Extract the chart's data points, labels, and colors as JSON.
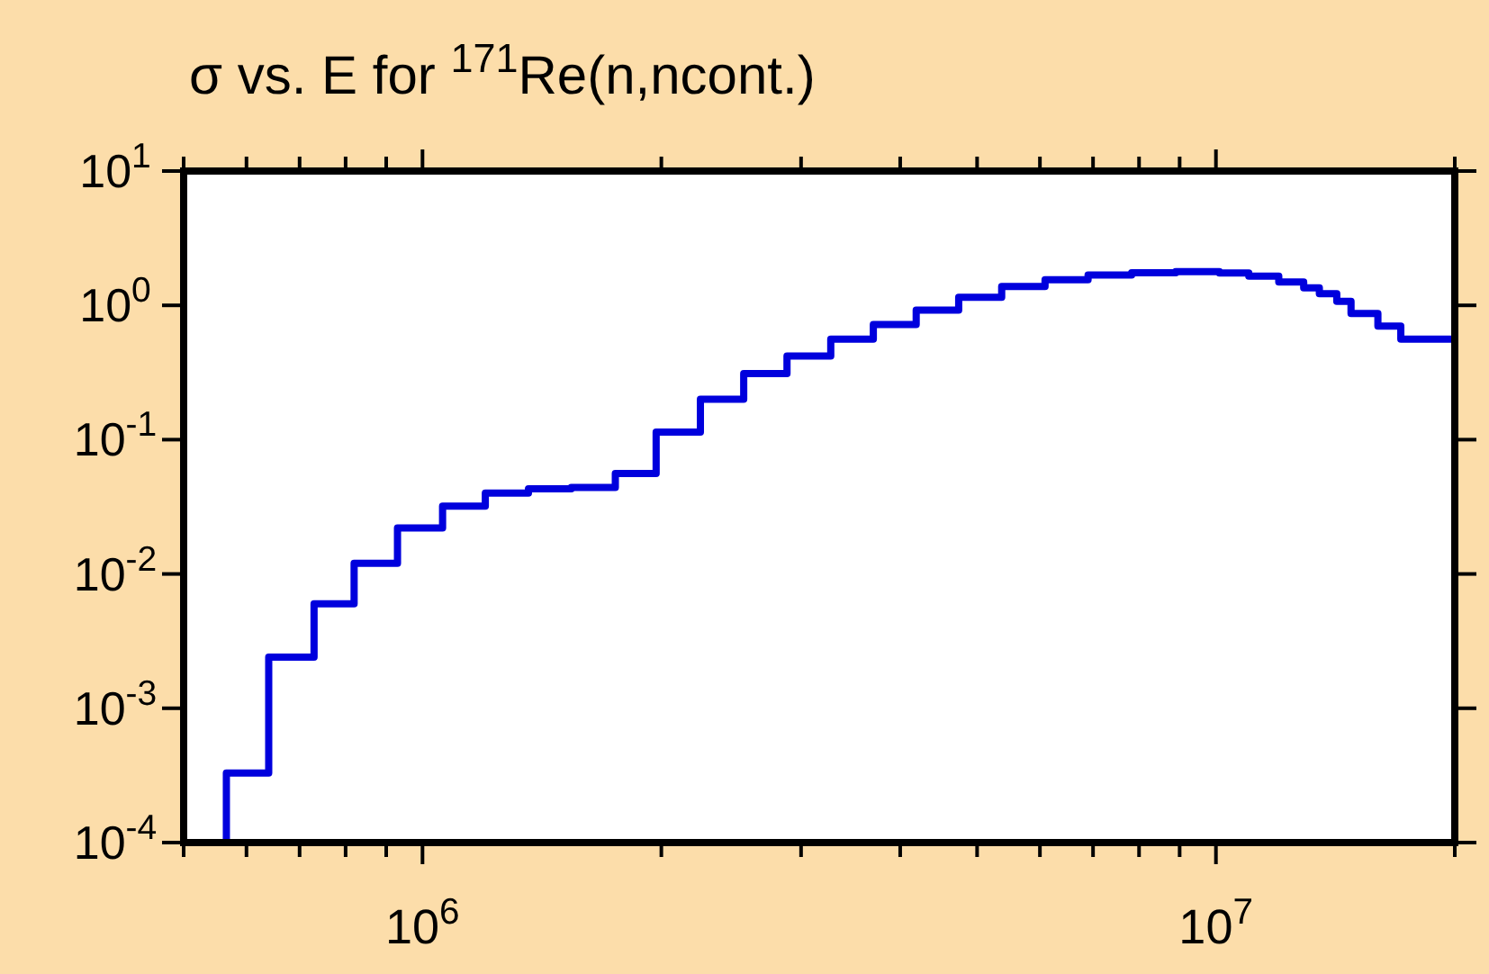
{
  "chart_data": {
    "type": "histogram",
    "title": "σ vs. E for $^{171}$Re(n,ncont.)",
    "bins": [
      566000,
      640000,
      730000,
      820000,
      930000,
      1060000,
      1200000,
      1360000,
      1540000,
      1750000,
      1970000,
      2240000,
      2540000,
      2880000,
      3270000,
      3700000,
      4190000,
      4740000,
      5370000,
      6090000,
      6900000,
      7830000,
      8900000,
      10100000,
      11000000,
      12000000,
      12900000,
      13500000,
      14200000,
      14800000,
      16000000,
      17100000,
      20000000
    ],
    "values": [
      0.00033,
      0.0024,
      0.006,
      0.012,
      0.022,
      0.032,
      0.04,
      0.043,
      0.044,
      0.056,
      0.114,
      0.2,
      0.31,
      0.42,
      0.56,
      0.72,
      0.92,
      1.15,
      1.38,
      1.55,
      1.68,
      1.75,
      1.78,
      1.74,
      1.65,
      1.49,
      1.35,
      1.22,
      1.07,
      0.87,
      0.7,
      0.56
    ],
    "color": "#0000dd",
    "log": "xy",
    "grid": false,
    "xlim": [
      500000,
      20000000
    ],
    "xticks": [
      {
        "value": 500000,
        "label": null
      },
      {
        "value": 600000,
        "label": null
      },
      {
        "value": 700000,
        "label": null
      },
      {
        "value": 800000,
        "label": null
      },
      {
        "value": 900000,
        "label": null
      },
      {
        "value": 1000000,
        "label": "10$^{6}$"
      },
      {
        "value": 2000000,
        "label": null
      },
      {
        "value": 3000000,
        "label": null
      },
      {
        "value": 4000000,
        "label": null
      },
      {
        "value": 5000000,
        "label": null
      },
      {
        "value": 6000000,
        "label": null
      },
      {
        "value": 7000000,
        "label": null
      },
      {
        "value": 8000000,
        "label": null
      },
      {
        "value": 9000000,
        "label": null
      },
      {
        "value": 10000000,
        "label": "10$^{7}$"
      },
      {
        "value": 20000000,
        "label": null
      }
    ],
    "ylim": [
      0.0001,
      10
    ],
    "yticks": [
      {
        "value": 0.0001,
        "label": "10$^{-4}$"
      },
      {
        "value": 0.001,
        "label": "10$^{-3}$"
      },
      {
        "value": 0.01,
        "label": "10$^{-2}$"
      },
      {
        "value": 0.1,
        "label": "10$^{-1}$"
      },
      {
        "value": 1,
        "label": "10$^{0}$"
      },
      {
        "value": 10,
        "label": "10$^{1}$"
      }
    ]
  }
}
